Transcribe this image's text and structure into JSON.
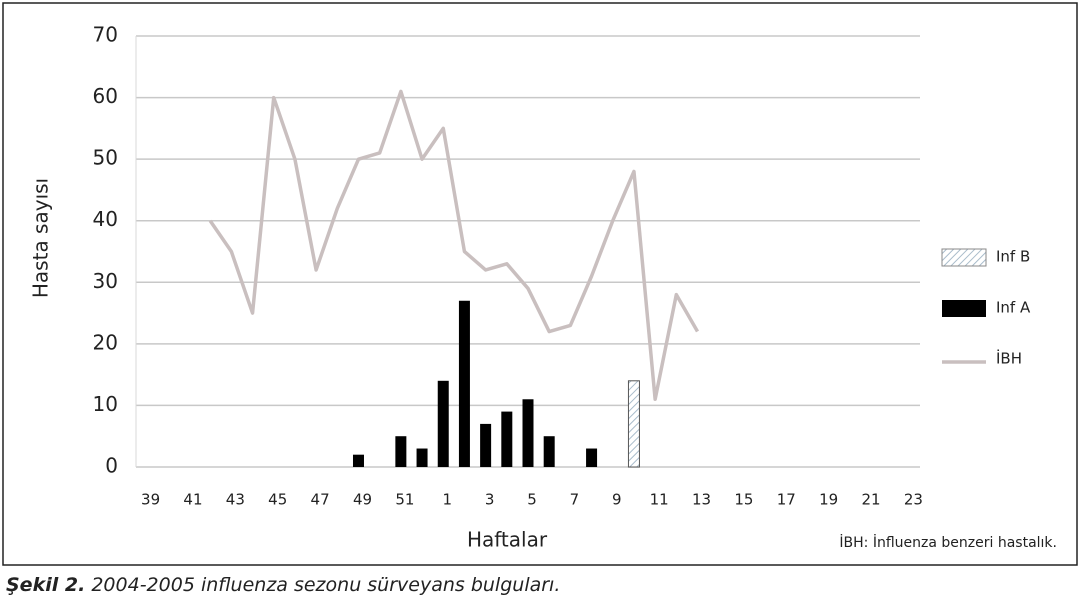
{
  "chart_data": {
    "type": "bar+line",
    "x_label": "Haftalar",
    "y_label": "Hasta sayısı",
    "footnote": "İBH: İnfluenza benzeri hastalık.",
    "categories": [
      "39",
      null,
      "41",
      null,
      "43",
      null,
      "45",
      null,
      "47",
      null,
      "49",
      null,
      "51",
      null,
      "1",
      null,
      "3",
      null,
      "5",
      null,
      "7",
      null,
      "9",
      null,
      "11",
      null,
      "13",
      null,
      "15",
      null,
      "17",
      null,
      "19",
      null,
      "21",
      null,
      "23"
    ],
    "series": [
      {
        "name": "Inf B",
        "type": "bar",
        "color": "#a9bccb",
        "hatch": true,
        "values": [
          null,
          null,
          null,
          null,
          null,
          null,
          null,
          null,
          null,
          null,
          null,
          null,
          null,
          null,
          null,
          null,
          null,
          null,
          null,
          null,
          null,
          null,
          null,
          14,
          null,
          null,
          null,
          null,
          null,
          null,
          null,
          null,
          null,
          null,
          null,
          null,
          null
        ]
      },
      {
        "name": "Inf A",
        "type": "bar",
        "color": "#000000",
        "values": [
          null,
          null,
          null,
          null,
          null,
          null,
          null,
          null,
          null,
          null,
          2,
          null,
          5,
          3,
          14,
          27,
          7,
          9,
          11,
          5,
          null,
          3,
          null,
          null,
          null,
          null,
          null,
          null,
          null,
          null,
          null,
          null,
          null,
          null,
          null,
          null,
          null
        ]
      },
      {
        "name": "İBH",
        "type": "line",
        "color": "#c9bfbf",
        "values": [
          null,
          null,
          null,
          40,
          35,
          25,
          60,
          50,
          32,
          42,
          50,
          51,
          61,
          50,
          55,
          35,
          32,
          33,
          29,
          22,
          23,
          31,
          40,
          48,
          11,
          28,
          22,
          null,
          null,
          null,
          null,
          null,
          null,
          null,
          null,
          null,
          null
        ]
      }
    ],
    "ylim": [
      0,
      70
    ],
    "yticks": [
      0,
      10,
      20,
      30,
      40,
      50,
      60,
      70
    ],
    "grid": true
  },
  "caption": {
    "label": "Şekil 2.",
    "text": "2004-2005 influenza sezonu sürveyans bulguları."
  }
}
